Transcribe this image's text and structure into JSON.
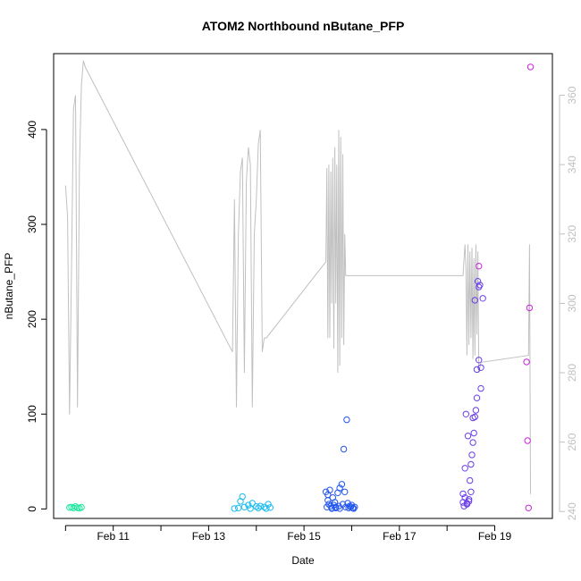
{
  "chart_data": {
    "type": "scatter",
    "title": "ATOM2 Northbound nButane_PFP",
    "xlabel": "Date",
    "ylabel": "nButane_PFP",
    "x_tick_labels": [
      "Feb 11",
      "Feb 13",
      "Feb 15",
      "Feb 17",
      "Feb 19"
    ],
    "y_ticks": [
      0,
      100,
      200,
      300,
      400
    ],
    "y2_ticks": [
      240,
      260,
      280,
      300,
      320,
      340,
      360
    ],
    "xlim": [
      "2016-02-09 18:00",
      "2016-02-20 05:00"
    ],
    "ylim": [
      -10,
      480
    ],
    "y2lim": [
      238,
      372
    ],
    "grid": false,
    "legend": "none",
    "series": [
      {
        "color": "#20e8a0",
        "x": [
          "2016-02-10 02:00",
          "2016-02-10 03:00",
          "2016-02-10 04:00",
          "2016-02-10 05:00",
          "2016-02-10 06:00",
          "2016-02-10 07:00",
          "2016-02-10 08:00"
        ],
        "y": [
          1.5,
          2.0,
          1.0,
          2.5,
          1.2,
          0.8,
          1.8
        ]
      },
      {
        "color": "#18bbee",
        "x": [
          "2016-02-13 13:00",
          "2016-02-13 15:00",
          "2016-02-13 16:00",
          "2016-02-13 17:00",
          "2016-02-13 18:00",
          "2016-02-13 20:00",
          "2016-02-13 21:00",
          "2016-02-13 22:00",
          "2016-02-14 00:00",
          "2016-02-14 01:00",
          "2016-02-14 02:00",
          "2016-02-14 04:00",
          "2016-02-14 05:00",
          "2016-02-14 06:00",
          "2016-02-14 07:00"
        ],
        "y": [
          0.5,
          1.0,
          8.0,
          13.0,
          2.0,
          4.0,
          0.5,
          6.0,
          2.5,
          1.0,
          3.0,
          2.0,
          0.5,
          5.0,
          1.5
        ]
      },
      {
        "color": "#2255ee",
        "x": [
          "2016-02-15 11:00",
          "2016-02-15 11:30",
          "2016-02-15 12:00",
          "2016-02-15 12:30",
          "2016-02-15 13:00",
          "2016-02-15 13:30",
          "2016-02-15 14:00",
          "2016-02-15 14:30",
          "2016-02-15 15:00",
          "2016-02-15 15:30",
          "2016-02-15 16:00",
          "2016-02-15 17:00",
          "2016-02-15 17:30",
          "2016-02-15 18:00",
          "2016-02-15 19:00",
          "2016-02-15 19:30",
          "2016-02-15 20:00",
          "2016-02-15 20:30",
          "2016-02-15 21:00",
          "2016-02-15 21:30",
          "2016-02-15 22:00",
          "2016-02-15 22:30",
          "2016-02-15 23:00",
          "2016-02-15 23:30",
          "2016-02-16 00:00",
          "2016-02-16 00:30",
          "2016-02-16 01:00",
          "2016-02-16 01:30",
          "2016-02-15 12:00",
          "2016-02-15 14:00",
          "2016-02-15 16:00",
          "2016-02-15 18:00"
        ],
        "y": [
          18,
          2,
          15,
          5,
          20,
          3,
          1,
          12,
          4,
          7,
          2,
          17,
          3,
          22,
          26,
          5,
          63,
          18,
          2,
          94,
          6,
          1,
          3,
          2,
          4,
          1,
          0.5,
          2,
          9,
          0.5,
          1,
          0.5
        ]
      },
      {
        "color": "#6a3ee8",
        "x": [
          "2016-02-18 08:00",
          "2016-02-18 08:30",
          "2016-02-18 09:00",
          "2016-02-18 09:30",
          "2016-02-18 10:00",
          "2016-02-18 10:30",
          "2016-02-18 11:00",
          "2016-02-18 11:30",
          "2016-02-18 12:00",
          "2016-02-18 12:30",
          "2016-02-18 13:00",
          "2016-02-18 13:30",
          "2016-02-18 14:00",
          "2016-02-18 14:30",
          "2016-02-18 15:00",
          "2016-02-18 15:30",
          "2016-02-18 16:00",
          "2016-02-18 16:30",
          "2016-02-18 17:00",
          "2016-02-18 18:00",
          "2016-02-18 08:00",
          "2016-02-18 09:00",
          "2016-02-18 10:00",
          "2016-02-18 11:00",
          "2016-02-18 12:00",
          "2016-02-18 13:00",
          "2016-02-18 14:00",
          "2016-02-18 15:00",
          "2016-02-18 16:00",
          "2016-02-18 17:00"
        ],
        "y": [
          16,
          3,
          43,
          100,
          6,
          77,
          10,
          30,
          47,
          57,
          70,
          80,
          97,
          104,
          117,
          240,
          234,
          236,
          149,
          222,
          7,
          12,
          5,
          8,
          18,
          96,
          220,
          147,
          157,
          127
        ]
      },
      {
        "color": "#cc22dd",
        "x": [
          "2016-02-18 16:00",
          "2016-02-19 16:00",
          "2016-02-19 16:30",
          "2016-02-19 17:00",
          "2016-02-19 17:30",
          "2016-02-19 18:00"
        ],
        "y": [
          256,
          155,
          72,
          1,
          212,
          466
        ]
      }
    ],
    "line_series": {
      "axis": "right",
      "color": "#c0c0c0",
      "x": [
        "2016-02-10 00:00",
        "2016-02-10 01:00",
        "2016-02-10 02:00",
        "2016-02-10 03:00",
        "2016-02-10 04:00",
        "2016-02-10 05:00",
        "2016-02-10 06:00",
        "2016-02-10 07:00",
        "2016-02-10 08:00",
        "2016-02-10 09:00",
        "2016-02-10 10:00",
        "2016-02-13 12:00",
        "2016-02-13 13:00",
        "2016-02-13 14:00",
        "2016-02-13 15:00",
        "2016-02-13 16:00",
        "2016-02-13 17:00",
        "2016-02-13 18:00",
        "2016-02-13 19:00",
        "2016-02-13 20:00",
        "2016-02-13 21:00",
        "2016-02-13 22:00",
        "2016-02-13 23:00",
        "2016-02-14 00:00",
        "2016-02-14 01:00",
        "2016-02-14 02:00",
        "2016-02-14 03:00",
        "2016-02-14 04:00",
        "2016-02-14 05:00",
        "2016-02-15 11:00",
        "2016-02-15 11:30",
        "2016-02-15 12:00",
        "2016-02-15 12:30",
        "2016-02-15 13:00",
        "2016-02-15 13:30",
        "2016-02-15 14:00",
        "2016-02-15 14:30",
        "2016-02-15 15:00",
        "2016-02-15 15:30",
        "2016-02-15 16:00",
        "2016-02-15 16:30",
        "2016-02-15 17:00",
        "2016-02-15 17:30",
        "2016-02-15 18:00",
        "2016-02-15 18:30",
        "2016-02-15 19:00",
        "2016-02-15 19:30",
        "2016-02-15 20:00",
        "2016-02-15 20:30",
        "2016-02-15 21:00",
        "2016-02-15 21:30",
        "2016-02-15 22:00",
        "2016-02-18 08:00",
        "2016-02-18 09:00",
        "2016-02-18 09:30",
        "2016-02-18 10:00",
        "2016-02-18 10:30",
        "2016-02-18 11:00",
        "2016-02-18 11:30",
        "2016-02-18 12:00",
        "2016-02-18 12:30",
        "2016-02-18 13:00",
        "2016-02-18 13:30",
        "2016-02-18 14:00",
        "2016-02-18 14:30",
        "2016-02-18 15:00",
        "2016-02-18 15:30",
        "2016-02-18 16:00",
        "2016-02-18 17:00",
        "2016-02-19 17:00",
        "2016-02-19 17:30",
        "2016-02-19 18:00"
      ],
      "y": [
        334,
        325,
        268,
        310,
        356,
        360,
        270,
        340,
        363,
        370,
        368,
        286,
        330,
        270,
        320,
        338,
        342,
        280,
        335,
        345,
        340,
        270,
        320,
        330,
        346,
        350,
        286,
        290,
        290,
        312,
        339,
        290,
        340,
        290,
        338,
        300,
        342,
        287,
        345,
        300,
        340,
        280,
        350,
        282,
        348,
        290,
        343,
        288,
        320,
        308,
        308,
        308,
        308,
        317,
        310,
        285,
        317,
        288,
        315,
        290,
        316,
        284,
        313,
        285,
        317,
        291,
        315,
        280,
        283,
        285,
        317,
        245
      ]
    }
  }
}
